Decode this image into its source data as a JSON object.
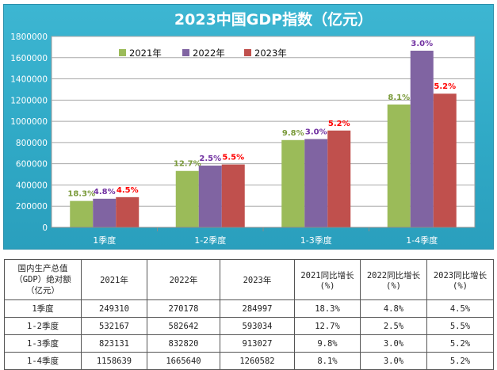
{
  "chart_data": {
    "type": "bar",
    "title": "2023中国GDP指数（亿元）",
    "categories": [
      "1季度",
      "1-2季度",
      "1-3季度",
      "1-4季度"
    ],
    "series": [
      {
        "name": "2021年",
        "color": "#9bbb59",
        "values": [
          249310,
          532167,
          823131,
          1158639
        ],
        "labels": [
          "18.3%",
          "12.7%",
          "9.8%",
          "8.1%"
        ],
        "label_color": "#7a9a3a"
      },
      {
        "name": "2022年",
        "color": "#8064a2",
        "values": [
          270178,
          582642,
          832820,
          1665640
        ],
        "labels": [
          "4.8%",
          "2.5%",
          "3.0%",
          "3.0%"
        ],
        "label_color": "#7030a0"
      },
      {
        "name": "2023年",
        "color": "#c0504d",
        "values": [
          284997,
          593034,
          913027,
          1260582
        ],
        "labels": [
          "4.5%",
          "5.5%",
          "5.2%",
          "5.2%"
        ],
        "label_color": "#ff0000"
      }
    ],
    "ylim": [
      0,
      1800000
    ],
    "yticks": [
      "0",
      "200000",
      "400000",
      "600000",
      "800000",
      "1000000",
      "1200000",
      "1400000",
      "1600000",
      "1800000"
    ],
    "xlabel": "",
    "ylabel": "",
    "grid": true,
    "legend": "top-left"
  },
  "table": {
    "headers": [
      "国内生产总值（GDP）绝对额（亿元）",
      "2021年",
      "2022年",
      "2023年",
      "2021同比增长(%)",
      "2022同比增长(%)",
      "2023同比增长(%)"
    ],
    "header_lines_first": [
      "国内生产总值",
      "（GDP）绝对额",
      "（亿元）"
    ],
    "header_lines": [
      [
        "2021年"
      ],
      [
        "2022年"
      ],
      [
        "2023年"
      ],
      [
        "2021同比增长",
        "(%)"
      ],
      [
        "2022同比增长",
        "(%)"
      ],
      [
        "2023同比增长",
        "(%)"
      ]
    ],
    "rows": [
      [
        "1季度",
        "249310",
        "270178",
        "284997",
        "18.3%",
        "4.8%",
        "4.5%"
      ],
      [
        "1-2季度",
        "532167",
        "582642",
        "593034",
        "12.7%",
        "2.5%",
        "5.5%"
      ],
      [
        "1-3季度",
        "823131",
        "832820",
        "913027",
        "9.8%",
        "3.0%",
        "5.2%"
      ],
      [
        "1-4季度",
        "1158639",
        "1665640",
        "1260582",
        "8.1%",
        "3.0%",
        "5.2%"
      ]
    ]
  }
}
